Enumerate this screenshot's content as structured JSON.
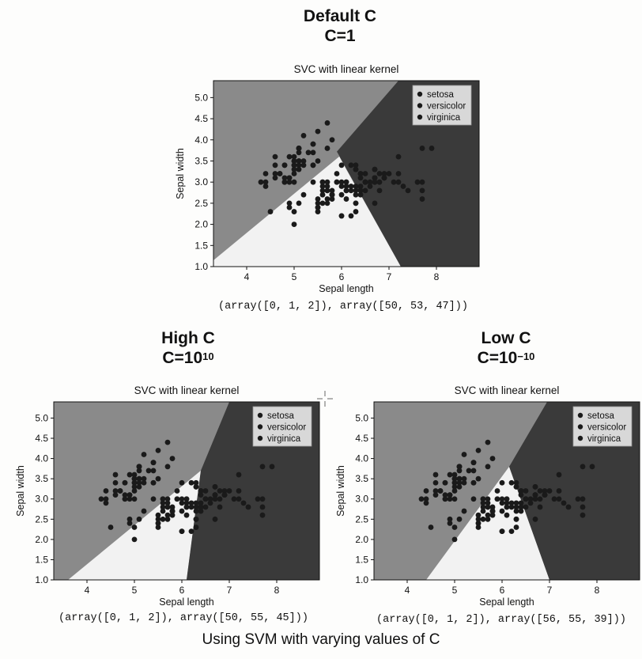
{
  "caption": "Using SVM with varying values of C",
  "panels": [
    {
      "id": "default",
      "heading": "Default C",
      "c_base": "C=1",
      "c_exp": "",
      "result": "(array([0, 1, 2]), array([50, 53, 47]))"
    },
    {
      "id": "high",
      "heading": "High C",
      "c_base": "C=10",
      "c_exp": "10",
      "result": "(array([0, 1, 2]), array([50, 55, 45]))"
    },
    {
      "id": "low",
      "heading": "Low C",
      "c_base": "C=10",
      "c_exp": "−10",
      "result": "(array([0, 1, 2]), array([56, 55, 39]))"
    }
  ],
  "colors": {
    "setosa_region": "#8a8a8a",
    "versicolor_region": "#f2f2f2",
    "virginica_region": "#3a3a3a",
    "point": "#1a1a1a",
    "legend_bg": "#d8d8d8"
  },
  "chart_data": [
    {
      "type": "scatter",
      "title": "SVC with linear kernel",
      "xlabel": "Sepal length",
      "ylabel": "Sepal width",
      "xlim": [
        3.3,
        8.9
      ],
      "ylim": [
        1.0,
        5.4
      ],
      "xticks": [
        "4",
        "5",
        "6",
        "7",
        "8"
      ],
      "yticks": [
        "1.0",
        "1.5",
        "2.0",
        "2.5",
        "3.0",
        "3.5",
        "4.0",
        "4.5",
        "5.0"
      ],
      "legend": [
        "setosa",
        "versicolor",
        "virginica"
      ],
      "legend_position": "top-right",
      "regions": {
        "versicolor": [
          [
            3.3,
            1.0
          ],
          [
            3.3,
            1.15
          ],
          [
            6.0,
            3.65
          ],
          [
            6.0,
            3.65
          ],
          [
            5.9,
            3.72
          ],
          [
            6.1,
            3.3
          ],
          [
            7.25,
            1.0
          ]
        ],
        "virginica": [
          [
            5.9,
            3.72
          ],
          [
            7.25,
            1.0
          ],
          [
            8.9,
            1.0
          ],
          [
            8.9,
            5.4
          ],
          [
            7.2,
            5.4
          ]
        ]
      }
    },
    {
      "type": "scatter",
      "title": "SVC with linear kernel",
      "xlabel": "Sepal length",
      "ylabel": "Sepal width",
      "xlim": [
        3.3,
        8.9
      ],
      "ylim": [
        1.0,
        5.4
      ],
      "xticks": [
        "4",
        "5",
        "6",
        "7",
        "8"
      ],
      "yticks": [
        "1.0",
        "1.5",
        "2.0",
        "2.5",
        "3.0",
        "3.5",
        "4.0",
        "4.5",
        "5.0"
      ],
      "legend": [
        "setosa",
        "versicolor",
        "virginica"
      ],
      "legend_position": "top-right",
      "regions": {
        "versicolor": [
          [
            3.6,
            1.0
          ],
          [
            6.4,
            3.7
          ],
          [
            6.1,
            1.0
          ]
        ],
        "virginica": [
          [
            6.1,
            1.0
          ],
          [
            6.4,
            3.7
          ],
          [
            7.0,
            5.4
          ],
          [
            8.9,
            5.4
          ],
          [
            8.9,
            1.0
          ]
        ]
      }
    },
    {
      "type": "scatter",
      "title": "SVC with linear kernel",
      "xlabel": "Sepal length",
      "ylabel": "Sepal width",
      "xlim": [
        3.3,
        8.9
      ],
      "ylim": [
        1.0,
        5.4
      ],
      "xticks": [
        "4",
        "5",
        "6",
        "7",
        "8"
      ],
      "yticks": [
        "1.0",
        "1.5",
        "2.0",
        "2.5",
        "3.0",
        "3.5",
        "4.0",
        "4.5",
        "5.0"
      ],
      "legend": [
        "setosa",
        "versicolor",
        "virginica"
      ],
      "legend_position": "top-right",
      "regions": {
        "versicolor": [
          [
            4.4,
            1.0
          ],
          [
            6.15,
            3.8
          ],
          [
            6.15,
            3.8
          ],
          [
            7.0,
            1.0
          ]
        ],
        "virginica": [
          [
            7.0,
            1.0
          ],
          [
            6.15,
            3.8
          ],
          [
            6.95,
            5.4
          ],
          [
            8.9,
            5.4
          ],
          [
            8.9,
            1.0
          ]
        ]
      }
    }
  ],
  "iris_points": {
    "setosa": [
      [
        5.1,
        3.5
      ],
      [
        4.9,
        3.0
      ],
      [
        4.7,
        3.2
      ],
      [
        4.6,
        3.1
      ],
      [
        5.0,
        3.6
      ],
      [
        5.4,
        3.9
      ],
      [
        4.6,
        3.4
      ],
      [
        5.0,
        3.4
      ],
      [
        4.4,
        2.9
      ],
      [
        4.9,
        3.1
      ],
      [
        5.4,
        3.7
      ],
      [
        4.8,
        3.4
      ],
      [
        4.8,
        3.0
      ],
      [
        4.3,
        3.0
      ],
      [
        5.8,
        4.0
      ],
      [
        5.7,
        4.4
      ],
      [
        5.4,
        3.9
      ],
      [
        5.1,
        3.5
      ],
      [
        5.7,
        3.8
      ],
      [
        5.1,
        3.8
      ],
      [
        5.4,
        3.4
      ],
      [
        5.1,
        3.7
      ],
      [
        4.6,
        3.6
      ],
      [
        5.1,
        3.3
      ],
      [
        4.8,
        3.4
      ],
      [
        5.0,
        3.0
      ],
      [
        5.0,
        3.4
      ],
      [
        5.2,
        3.5
      ],
      [
        5.2,
        3.4
      ],
      [
        4.7,
        3.2
      ],
      [
        4.8,
        3.1
      ],
      [
        5.4,
        3.4
      ],
      [
        5.2,
        4.1
      ],
      [
        5.5,
        4.2
      ],
      [
        4.9,
        3.1
      ],
      [
        5.0,
        3.2
      ],
      [
        5.5,
        3.5
      ],
      [
        4.9,
        3.6
      ],
      [
        4.4,
        3.0
      ],
      [
        5.1,
        3.4
      ],
      [
        5.0,
        3.5
      ],
      [
        4.5,
        2.3
      ],
      [
        4.4,
        3.2
      ],
      [
        5.0,
        3.5
      ],
      [
        5.1,
        3.8
      ],
      [
        4.8,
        3.0
      ],
      [
        5.1,
        3.8
      ],
      [
        4.6,
        3.2
      ],
      [
        5.3,
        3.7
      ],
      [
        5.0,
        3.3
      ]
    ],
    "versicolor": [
      [
        7.0,
        3.2
      ],
      [
        6.4,
        3.2
      ],
      [
        6.9,
        3.1
      ],
      [
        5.5,
        2.3
      ],
      [
        6.5,
        2.8
      ],
      [
        5.7,
        2.8
      ],
      [
        6.3,
        3.3
      ],
      [
        4.9,
        2.4
      ],
      [
        6.6,
        2.9
      ],
      [
        5.2,
        2.7
      ],
      [
        5.0,
        2.0
      ],
      [
        5.9,
        3.0
      ],
      [
        6.0,
        2.2
      ],
      [
        6.1,
        2.9
      ],
      [
        5.6,
        2.9
      ],
      [
        6.7,
        3.1
      ],
      [
        5.6,
        3.0
      ],
      [
        5.8,
        2.7
      ],
      [
        6.2,
        2.2
      ],
      [
        5.6,
        2.5
      ],
      [
        5.9,
        3.2
      ],
      [
        6.1,
        2.8
      ],
      [
        6.3,
        2.5
      ],
      [
        6.1,
        2.8
      ],
      [
        6.4,
        2.9
      ],
      [
        6.6,
        3.0
      ],
      [
        6.8,
        2.8
      ],
      [
        6.7,
        3.0
      ],
      [
        6.0,
        2.9
      ],
      [
        5.7,
        2.6
      ],
      [
        5.5,
        2.4
      ],
      [
        5.5,
        2.4
      ],
      [
        5.8,
        2.7
      ],
      [
        6.0,
        2.7
      ],
      [
        5.4,
        3.0
      ],
      [
        6.0,
        3.4
      ],
      [
        6.7,
        3.1
      ],
      [
        6.3,
        2.3
      ],
      [
        5.6,
        3.0
      ],
      [
        5.5,
        2.5
      ],
      [
        5.5,
        2.6
      ],
      [
        6.1,
        3.0
      ],
      [
        5.8,
        2.6
      ],
      [
        5.0,
        2.3
      ],
      [
        5.6,
        2.7
      ],
      [
        5.7,
        3.0
      ],
      [
        5.7,
        2.9
      ],
      [
        6.2,
        2.9
      ],
      [
        5.1,
        2.5
      ],
      [
        5.7,
        2.8
      ]
    ],
    "virginica": [
      [
        6.3,
        3.3
      ],
      [
        5.8,
        2.7
      ],
      [
        7.1,
        3.0
      ],
      [
        6.3,
        2.9
      ],
      [
        6.5,
        3.0
      ],
      [
        7.6,
        3.0
      ],
      [
        4.9,
        2.5
      ],
      [
        7.3,
        2.9
      ],
      [
        6.7,
        2.5
      ],
      [
        7.2,
        3.6
      ],
      [
        6.5,
        3.2
      ],
      [
        6.4,
        2.7
      ],
      [
        6.8,
        3.0
      ],
      [
        5.7,
        2.5
      ],
      [
        5.8,
        2.8
      ],
      [
        6.4,
        3.2
      ],
      [
        6.5,
        3.0
      ],
      [
        7.7,
        3.8
      ],
      [
        7.7,
        2.6
      ],
      [
        6.0,
        2.2
      ],
      [
        6.9,
        3.2
      ],
      [
        5.6,
        2.8
      ],
      [
        7.7,
        2.8
      ],
      [
        6.3,
        2.7
      ],
      [
        6.7,
        3.3
      ],
      [
        7.2,
        3.2
      ],
      [
        6.2,
        2.8
      ],
      [
        6.1,
        3.0
      ],
      [
        6.4,
        2.8
      ],
      [
        7.2,
        3.0
      ],
      [
        7.4,
        2.8
      ],
      [
        7.9,
        3.8
      ],
      [
        6.4,
        2.8
      ],
      [
        6.3,
        2.8
      ],
      [
        6.1,
        2.6
      ],
      [
        7.7,
        3.0
      ],
      [
        6.3,
        3.4
      ],
      [
        6.4,
        3.1
      ],
      [
        6.0,
        3.0
      ],
      [
        6.9,
        3.1
      ],
      [
        6.7,
        3.1
      ],
      [
        6.9,
        3.1
      ],
      [
        5.8,
        2.7
      ],
      [
        6.8,
        3.2
      ],
      [
        6.7,
        3.3
      ],
      [
        6.7,
        3.0
      ],
      [
        6.3,
        2.5
      ],
      [
        6.5,
        3.0
      ],
      [
        6.2,
        3.4
      ],
      [
        5.9,
        3.0
      ]
    ]
  }
}
